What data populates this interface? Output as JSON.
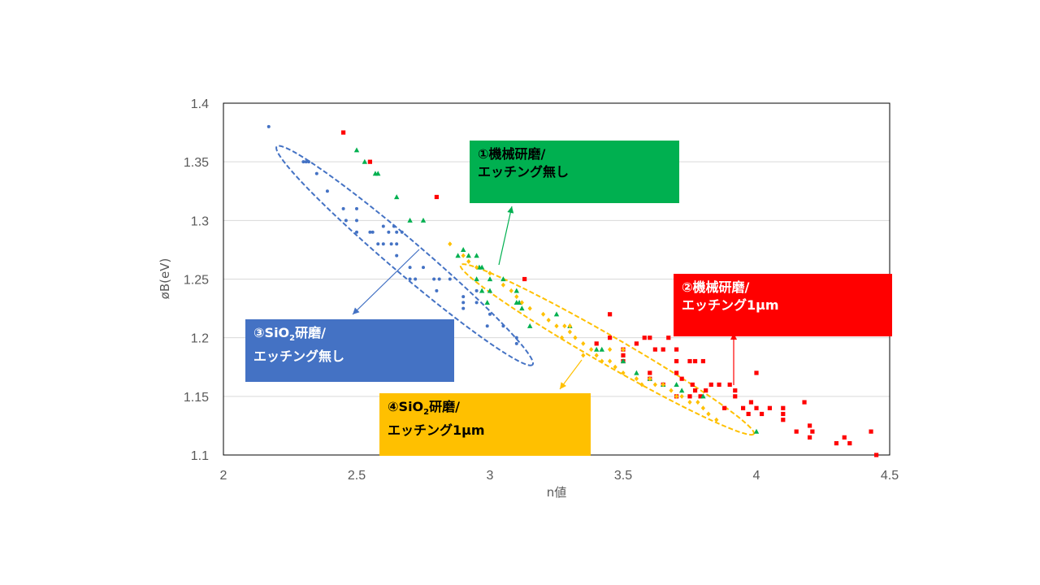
{
  "chart_data": {
    "type": "scatter",
    "xlabel": "n値",
    "ylabel": "øB(eV)",
    "xlim": [
      2,
      4.5
    ],
    "ylim": [
      1.1,
      1.4
    ],
    "xticks": [
      "2",
      "2.5",
      "3",
      "3.5",
      "4",
      "4.5"
    ],
    "yticks": [
      "1.1",
      "1.15",
      "1.2",
      "1.25",
      "1.3",
      "1.35",
      "1.4"
    ],
    "grid": "horizontal",
    "legend": "none",
    "series": [
      {
        "color": "#4472c4",
        "marker": "circle",
        "points": [
          [
            2.17,
            1.38
          ],
          [
            2.3,
            1.35
          ],
          [
            2.31,
            1.35
          ],
          [
            2.32,
            1.35
          ],
          [
            2.35,
            1.34
          ],
          [
            2.39,
            1.325
          ],
          [
            2.45,
            1.31
          ],
          [
            2.5,
            1.31
          ],
          [
            2.46,
            1.3
          ],
          [
            2.5,
            1.3
          ],
          [
            2.5,
            1.29
          ],
          [
            2.55,
            1.29
          ],
          [
            2.56,
            1.29
          ],
          [
            2.58,
            1.28
          ],
          [
            2.6,
            1.28
          ],
          [
            2.63,
            1.28
          ],
          [
            2.65,
            1.28
          ],
          [
            2.62,
            1.29
          ],
          [
            2.65,
            1.29
          ],
          [
            2.6,
            1.295
          ],
          [
            2.64,
            1.295
          ],
          [
            2.67,
            1.29
          ],
          [
            2.65,
            1.27
          ],
          [
            2.7,
            1.26
          ],
          [
            2.75,
            1.26
          ],
          [
            2.7,
            1.25
          ],
          [
            2.72,
            1.25
          ],
          [
            2.79,
            1.25
          ],
          [
            2.81,
            1.25
          ],
          [
            2.8,
            1.24
          ],
          [
            2.85,
            1.25
          ],
          [
            2.9,
            1.235
          ],
          [
            2.9,
            1.23
          ],
          [
            2.9,
            1.225
          ],
          [
            2.95,
            1.24
          ],
          [
            2.95,
            1.23
          ],
          [
            2.99,
            1.21
          ],
          [
            3.0,
            1.22
          ],
          [
            3.05,
            1.21
          ],
          [
            3.1,
            1.2
          ],
          [
            3.1,
            1.195
          ]
        ]
      },
      {
        "color": "#ff0000",
        "marker": "square",
        "points": [
          [
            2.45,
            1.375
          ],
          [
            2.55,
            1.35
          ],
          [
            2.8,
            1.32
          ],
          [
            3.13,
            1.25
          ],
          [
            3.45,
            1.22
          ],
          [
            3.4,
            1.195
          ],
          [
            3.45,
            1.2
          ],
          [
            3.5,
            1.19
          ],
          [
            3.5,
            1.185
          ],
          [
            3.5,
            1.18
          ],
          [
            3.55,
            1.195
          ],
          [
            3.58,
            1.2
          ],
          [
            3.6,
            1.2
          ],
          [
            3.62,
            1.19
          ],
          [
            3.65,
            1.19
          ],
          [
            3.67,
            1.2
          ],
          [
            3.7,
            1.19
          ],
          [
            3.6,
            1.17
          ],
          [
            3.6,
            1.165
          ],
          [
            3.65,
            1.16
          ],
          [
            3.7,
            1.18
          ],
          [
            3.7,
            1.17
          ],
          [
            3.72,
            1.165
          ],
          [
            3.75,
            1.18
          ],
          [
            3.77,
            1.18
          ],
          [
            3.76,
            1.16
          ],
          [
            3.8,
            1.18
          ],
          [
            3.77,
            1.155
          ],
          [
            3.79,
            1.15
          ],
          [
            3.81,
            1.155
          ],
          [
            3.83,
            1.16
          ],
          [
            3.86,
            1.16
          ],
          [
            3.9,
            1.16
          ],
          [
            3.92,
            1.15
          ],
          [
            3.92,
            1.155
          ],
          [
            3.88,
            1.14
          ],
          [
            3.95,
            1.14
          ],
          [
            3.97,
            1.135
          ],
          [
            3.98,
            1.145
          ],
          [
            4.0,
            1.14
          ],
          [
            4.0,
            1.17
          ],
          [
            4.02,
            1.135
          ],
          [
            4.05,
            1.14
          ],
          [
            4.1,
            1.14
          ],
          [
            4.1,
            1.135
          ],
          [
            4.1,
            1.13
          ],
          [
            4.15,
            1.12
          ],
          [
            4.18,
            1.145
          ],
          [
            4.2,
            1.125
          ],
          [
            4.21,
            1.12
          ],
          [
            4.2,
            1.115
          ],
          [
            4.3,
            1.11
          ],
          [
            4.33,
            1.115
          ],
          [
            4.35,
            1.11
          ],
          [
            4.43,
            1.12
          ],
          [
            4.45,
            1.1
          ],
          [
            3.7,
            1.15
          ],
          [
            3.75,
            1.15
          ]
        ]
      },
      {
        "color": "#00b050",
        "marker": "triangle",
        "points": [
          [
            2.5,
            1.36
          ],
          [
            2.53,
            1.35
          ],
          [
            2.57,
            1.34
          ],
          [
            2.58,
            1.34
          ],
          [
            2.65,
            1.32
          ],
          [
            2.7,
            1.3
          ],
          [
            2.75,
            1.3
          ],
          [
            2.88,
            1.27
          ],
          [
            2.9,
            1.275
          ],
          [
            2.92,
            1.27
          ],
          [
            2.95,
            1.27
          ],
          [
            2.96,
            1.26
          ],
          [
            2.97,
            1.26
          ],
          [
            2.95,
            1.25
          ],
          [
            2.97,
            1.24
          ],
          [
            3.0,
            1.25
          ],
          [
            3.0,
            1.24
          ],
          [
            2.99,
            1.23
          ],
          [
            3.05,
            1.25
          ],
          [
            3.1,
            1.24
          ],
          [
            3.1,
            1.23
          ],
          [
            3.11,
            1.23
          ],
          [
            3.12,
            1.225
          ],
          [
            3.15,
            1.21
          ],
          [
            3.25,
            1.22
          ],
          [
            3.3,
            1.21
          ],
          [
            3.4,
            1.19
          ],
          [
            3.42,
            1.19
          ],
          [
            3.5,
            1.18
          ],
          [
            3.55,
            1.17
          ],
          [
            3.6,
            1.165
          ],
          [
            3.65,
            1.16
          ],
          [
            3.7,
            1.16
          ],
          [
            3.72,
            1.155
          ],
          [
            3.8,
            1.15
          ],
          [
            4.0,
            1.12
          ]
        ]
      },
      {
        "color": "#ffc000",
        "marker": "diamond",
        "points": [
          [
            2.85,
            1.28
          ],
          [
            2.9,
            1.27
          ],
          [
            2.92,
            1.265
          ],
          [
            2.95,
            1.26
          ],
          [
            3.0,
            1.255
          ],
          [
            3.05,
            1.245
          ],
          [
            3.08,
            1.24
          ],
          [
            3.1,
            1.235
          ],
          [
            3.12,
            1.23
          ],
          [
            3.15,
            1.225
          ],
          [
            3.2,
            1.22
          ],
          [
            3.22,
            1.215
          ],
          [
            3.25,
            1.21
          ],
          [
            3.28,
            1.21
          ],
          [
            3.3,
            1.205
          ],
          [
            3.27,
            1.2
          ],
          [
            3.32,
            1.2
          ],
          [
            3.35,
            1.195
          ],
          [
            3.38,
            1.19
          ],
          [
            3.4,
            1.185
          ],
          [
            3.42,
            1.18
          ],
          [
            3.45,
            1.18
          ],
          [
            3.47,
            1.175
          ],
          [
            3.5,
            1.19
          ],
          [
            3.5,
            1.17
          ],
          [
            3.55,
            1.165
          ],
          [
            3.57,
            1.16
          ],
          [
            3.6,
            1.165
          ],
          [
            3.62,
            1.16
          ],
          [
            3.65,
            1.16
          ],
          [
            3.68,
            1.155
          ],
          [
            3.7,
            1.15
          ],
          [
            3.72,
            1.15
          ],
          [
            3.75,
            1.145
          ],
          [
            3.78,
            1.145
          ],
          [
            3.8,
            1.14
          ],
          [
            3.82,
            1.135
          ],
          [
            3.85,
            1.13
          ],
          [
            3.35,
            1.185
          ],
          [
            3.45,
            1.19
          ],
          [
            3.3,
            1.21
          ]
        ]
      }
    ],
    "ellipses": [
      {
        "color": "#4472c4",
        "cx": 2.68,
        "cy": 1.27,
        "semi_major_x": 0.48,
        "semi_major_y": -0.093,
        "semi_minor": 0.014
      },
      {
        "color": "#ffc000",
        "cx": 3.44,
        "cy": 1.19,
        "semi_major_x": 0.55,
        "semi_major_y": -0.072,
        "semi_minor": 0.012
      }
    ],
    "annotations": [
      {
        "id": "note1",
        "lines": [
          "①機械研磨/",
          "エッチング無し"
        ],
        "color": "#00b050",
        "arrow": "up"
      },
      {
        "id": "note2",
        "lines": [
          "②機械研磨/",
          "エッチング1μm"
        ],
        "color": "#ff0000",
        "arrow": "up"
      },
      {
        "id": "note3",
        "lines": [
          "③SiO",
          "2",
          "研磨/",
          "エッチング無し"
        ],
        "color": "#4472c4",
        "arrow": "down-left"
      },
      {
        "id": "note4",
        "lines": [
          "④SiO",
          "2",
          "研磨/",
          "エッチング1μm"
        ],
        "color": "#ffc000",
        "arrow": "down-left"
      }
    ]
  },
  "callouts": {
    "c1": {
      "line1": "①機械研磨/",
      "line2": "エッチング無し"
    },
    "c2": {
      "line1": "②機械研磨/",
      "line2": "エッチング1μm"
    },
    "c3": {
      "pre": "③SiO",
      "sub": "2",
      "post": "研磨/",
      "line2": "エッチング無し"
    },
    "c4": {
      "pre": "④SiO",
      "sub": "2",
      "post": "研磨/",
      "line2": "エッチング1μm"
    }
  }
}
